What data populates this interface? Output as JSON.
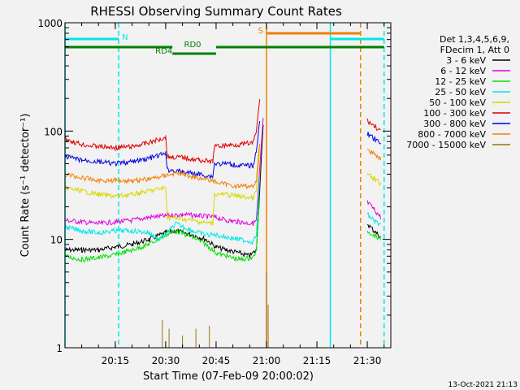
{
  "chart_data": {
    "type": "line",
    "title": "RHESSI Observing Summary Count Rates",
    "xlabel": "Start Time (07-Feb-09 20:00:02)",
    "ylabel": "Count Rate (s⁻¹ detector⁻¹)",
    "yscale": "log",
    "ylim": [
      1,
      1000
    ],
    "xlim": [
      "20:00:02",
      "21:37:00"
    ],
    "x_ticks": [
      "20:15",
      "20:30",
      "20:45",
      "21:00",
      "21:15",
      "21:30"
    ],
    "y_ticks": [
      "1",
      "10",
      "100",
      "1000"
    ],
    "timestamp": "13-Oct-2021 21:13",
    "legend": {
      "placement": "right",
      "header": [
        "Det 1,3,4,5,6,9,",
        "FDecim 1, Att 0"
      ]
    },
    "series": [
      {
        "name": "3 - 6 keV",
        "color": "#000000",
        "points": [
          [
            "20:00",
            8
          ],
          [
            "20:05",
            8
          ],
          [
            "20:10",
            8
          ],
          [
            "20:15",
            8.5
          ],
          [
            "20:20",
            9
          ],
          [
            "20:25",
            10
          ],
          [
            "20:30",
            11.5
          ],
          [
            "20:33",
            12
          ],
          [
            "20:38",
            11
          ],
          [
            "20:42",
            10
          ],
          [
            "20:45",
            8.5
          ],
          [
            "20:48",
            8
          ],
          [
            "20:52",
            7.5
          ],
          [
            "20:55",
            7
          ],
          [
            "20:57",
            8
          ],
          [
            "20:58",
            30
          ],
          [
            "20:59",
            110
          ]
        ],
        "points2": [
          [
            "21:30",
            14
          ],
          [
            "21:32",
            12
          ],
          [
            "21:34",
            10.5
          ]
        ]
      },
      {
        "name": "6 - 12 keV",
        "color": "#e000e0",
        "points": [
          [
            "20:00",
            15
          ],
          [
            "20:05",
            14.5
          ],
          [
            "20:10",
            14
          ],
          [
            "20:15",
            14.5
          ],
          [
            "20:20",
            15
          ],
          [
            "20:25",
            16
          ],
          [
            "20:30",
            16.5
          ],
          [
            "20:35",
            17
          ],
          [
            "20:40",
            16.5
          ],
          [
            "20:45",
            16
          ],
          [
            "20:48",
            15
          ],
          [
            "20:52",
            14.5
          ],
          [
            "20:56",
            14
          ],
          [
            "20:57",
            15
          ],
          [
            "20:58",
            45
          ],
          [
            "20:59",
            130
          ]
        ],
        "points2": [
          [
            "21:30",
            22
          ],
          [
            "21:32",
            19
          ],
          [
            "21:34",
            16
          ]
        ]
      },
      {
        "name": "12 - 25 keV",
        "color": "#00e000",
        "points": [
          [
            "20:00",
            7
          ],
          [
            "20:05",
            6.5
          ],
          [
            "20:10",
            6.8
          ],
          [
            "20:15",
            7.2
          ],
          [
            "20:20",
            8
          ],
          [
            "20:25",
            9
          ],
          [
            "20:30",
            11
          ],
          [
            "20:33",
            12
          ],
          [
            "20:38",
            10.5
          ],
          [
            "20:42",
            9
          ],
          [
            "20:45",
            7.5
          ],
          [
            "20:48",
            7
          ],
          [
            "20:52",
            6.5
          ],
          [
            "20:56",
            6.8
          ],
          [
            "20:57",
            8
          ],
          [
            "20:58",
            25
          ]
        ],
        "points2": [
          [
            "21:30",
            12
          ],
          [
            "21:32",
            11
          ],
          [
            "21:34",
            10
          ]
        ]
      },
      {
        "name": "25 - 50 keV",
        "color": "#00e8e8",
        "points": [
          [
            "20:00",
            13
          ],
          [
            "20:05",
            12
          ],
          [
            "20:10",
            11.5
          ],
          [
            "20:15",
            12
          ],
          [
            "20:20",
            12
          ],
          [
            "20:25",
            11.5
          ],
          [
            "20:28",
            10
          ],
          [
            "20:30",
            11
          ],
          [
            "20:33",
            14
          ],
          [
            "20:38",
            12
          ],
          [
            "20:42",
            11
          ],
          [
            "20:45",
            11
          ],
          [
            "20:48",
            10.5
          ],
          [
            "20:52",
            10
          ],
          [
            "20:56",
            9.5
          ],
          [
            "20:57",
            11
          ],
          [
            "20:58",
            40
          ]
        ],
        "points2": [
          [
            "21:30",
            17
          ],
          [
            "21:32",
            15
          ],
          [
            "21:34",
            13.5
          ]
        ]
      },
      {
        "name": "50 - 100 keV",
        "color": "#d8d800",
        "points": [
          [
            "20:00",
            30
          ],
          [
            "20:05",
            28
          ],
          [
            "20:10",
            26
          ],
          [
            "20:15",
            25
          ],
          [
            "20:20",
            26
          ],
          [
            "20:25",
            28
          ],
          [
            "20:30",
            30
          ],
          [
            "20:30.5",
            16
          ],
          [
            "20:35",
            15.5
          ],
          [
            "20:40",
            14.5
          ],
          [
            "20:44",
            14
          ],
          [
            "20:44.5",
            26
          ],
          [
            "20:48",
            26
          ],
          [
            "20:52",
            25
          ],
          [
            "20:56",
            24
          ],
          [
            "20:57",
            28
          ],
          [
            "20:58",
            70
          ]
        ],
        "points2": [
          [
            "21:30",
            40
          ],
          [
            "21:32",
            36
          ],
          [
            "21:34",
            33
          ]
        ]
      },
      {
        "name": "100 - 300 keV",
        "color": "#e00000",
        "points": [
          [
            "20:00",
            85
          ],
          [
            "20:05",
            75
          ],
          [
            "20:10",
            72
          ],
          [
            "20:15",
            70
          ],
          [
            "20:20",
            72
          ],
          [
            "20:25",
            78
          ],
          [
            "20:30",
            88
          ],
          [
            "20:30.5",
            58
          ],
          [
            "20:35",
            57
          ],
          [
            "20:40",
            54
          ],
          [
            "20:44",
            52
          ],
          [
            "20:44.5",
            72
          ],
          [
            "20:48",
            74
          ],
          [
            "20:52",
            75
          ],
          [
            "20:56",
            78
          ],
          [
            "20:57",
            100
          ],
          [
            "20:58",
            200
          ]
        ],
        "points2": [
          [
            "21:30",
            125
          ],
          [
            "21:32",
            112
          ],
          [
            "21:34",
            100
          ]
        ]
      },
      {
        "name": "300 - 800 keV",
        "color": "#0000e0",
        "points": [
          [
            "20:00",
            58
          ],
          [
            "20:05",
            54
          ],
          [
            "20:10",
            52
          ],
          [
            "20:15",
            50
          ],
          [
            "20:20",
            52
          ],
          [
            "20:25",
            56
          ],
          [
            "20:30",
            62
          ],
          [
            "20:30.5",
            44
          ],
          [
            "20:35",
            42
          ],
          [
            "20:40",
            40
          ],
          [
            "20:44",
            38
          ],
          [
            "20:44.5",
            50
          ],
          [
            "20:48",
            50
          ],
          [
            "20:52",
            48
          ],
          [
            "20:56",
            48
          ],
          [
            "20:57",
            65
          ],
          [
            "20:58",
            130
          ]
        ],
        "points2": [
          [
            "21:30",
            95
          ],
          [
            "21:32",
            85
          ],
          [
            "21:34",
            76
          ]
        ]
      },
      {
        "name": "800 - 7000 keV",
        "color": "#f08000",
        "points": [
          [
            "20:00",
            40
          ],
          [
            "20:05",
            37
          ],
          [
            "20:10",
            35
          ],
          [
            "20:15",
            35
          ],
          [
            "20:20",
            35
          ],
          [
            "20:25",
            36
          ],
          [
            "20:30",
            39
          ],
          [
            "20:33",
            41
          ],
          [
            "20:38",
            38
          ],
          [
            "20:42",
            36
          ],
          [
            "20:45",
            34
          ],
          [
            "20:48",
            32
          ],
          [
            "20:52",
            31
          ],
          [
            "20:56",
            31
          ],
          [
            "20:57",
            35
          ],
          [
            "20:58",
            80
          ]
        ],
        "points2": [
          [
            "21:30",
            68
          ],
          [
            "21:32",
            62
          ],
          [
            "21:34",
            56
          ]
        ]
      },
      {
        "name": "7000 - 15000 keV",
        "color": "#9a7010",
        "points": [],
        "spikes": [
          [
            "20:29",
            1.8
          ],
          [
            "20:31",
            1.5
          ],
          [
            "20:35",
            1.3
          ],
          [
            "20:39",
            1.5
          ],
          [
            "20:43",
            1.6
          ],
          [
            "21:00",
            5
          ],
          [
            "21:00.5",
            2.5
          ]
        ]
      }
    ],
    "status_bars": [
      {
        "label": "N",
        "color": "#00e8e8",
        "segments": [
          [
            "20:00:02",
            "20:16"
          ],
          [
            "21:19",
            "21:35"
          ]
        ]
      },
      {
        "label": "S",
        "color": "#f08000",
        "segments": [
          [
            "21:00",
            "21:28"
          ]
        ]
      },
      {
        "label": "RD0",
        "color": "#008000",
        "segments": [
          [
            "20:00:02",
            "20:32"
          ],
          [
            "20:45",
            "21:35"
          ]
        ]
      },
      {
        "label": "RD4",
        "color": "#008000",
        "segments": [
          [
            "20:32",
            "20:45"
          ]
        ]
      }
    ],
    "vertical_markers": [
      {
        "time": "20:00:02",
        "color": "#00e8e8",
        "style": "solid"
      },
      {
        "time": "20:16",
        "color": "#00e8e8",
        "style": "dashed"
      },
      {
        "time": "21:00",
        "color": "#f08000",
        "style": "solid"
      },
      {
        "time": "21:19",
        "color": "#00e8e8",
        "style": "solid"
      },
      {
        "time": "21:28",
        "color": "#f08000",
        "style": "dashed"
      },
      {
        "time": "21:35",
        "color": "#00e8e8",
        "style": "dashed"
      }
    ]
  }
}
